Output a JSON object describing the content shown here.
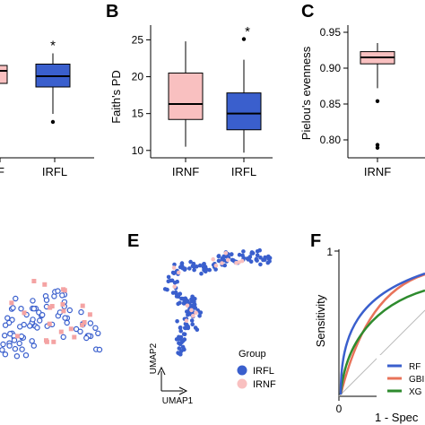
{
  "colors": {
    "irnf": "#f9c0c0",
    "irfl": "#3a5fcd",
    "rf": "#3a5fcd",
    "gbm": "#e8735a",
    "xg": "#2e8b2e"
  },
  "panel_a": {
    "categories": [
      "IRNF",
      "IRFL"
    ],
    "visible_labels": [
      "F",
      "IRFL"
    ],
    "significance": "*",
    "boxes": [
      {
        "name": "IRNF",
        "q3": 0.9,
        "median": 0.7
      },
      {
        "name": "IRFL",
        "min": -0.9,
        "q1": 0.1,
        "median": 0.5,
        "q3": 0.95,
        "max": 1.35,
        "outliers": [
          -1.2
        ],
        "sig": "*"
      }
    ]
  },
  "panel_b": {
    "letter": "B",
    "ylabel": "Faith's PD",
    "yticks": [
      "25",
      "20",
      "15",
      "10"
    ],
    "ylim": [
      9,
      27
    ],
    "categories": [
      "IRNF",
      "IRFL"
    ],
    "significance": "*",
    "boxes": [
      {
        "name": "IRNF",
        "min": 10.5,
        "q1": 14.2,
        "median": 16.3,
        "q3": 20.5,
        "max": 24.8,
        "outliers": []
      },
      {
        "name": "IRFL",
        "min": 9.7,
        "q1": 12.8,
        "median": 15.0,
        "q3": 17.8,
        "max": 22.3,
        "outliers": [
          25.1
        ]
      }
    ]
  },
  "panel_c": {
    "letter": "C",
    "ylabel": "Pielou's evenness",
    "yticks": [
      "0.95",
      "0.90",
      "0.85",
      "0.80"
    ],
    "ylim": [
      0.775,
      0.96
    ],
    "categories": [
      "IRNF"
    ],
    "boxes": [
      {
        "name": "IRNF",
        "min": 0.872,
        "q1": 0.906,
        "median": 0.915,
        "q3": 0.923,
        "max": 0.935,
        "outliers": [
          0.854,
          0.793,
          0.789
        ]
      }
    ]
  },
  "panel_e": {
    "letter": "E",
    "xlabel": "UMAP1",
    "ylabel": "UMAP2",
    "legend_title": "Group",
    "legend": [
      "IRFL",
      "IRNF"
    ]
  },
  "panel_f": {
    "letter": "F",
    "ylabel": "Sensitivity",
    "xlabel": "1 - Spec",
    "xtick0": "0",
    "ytick_top": "1",
    "legend": [
      "RF",
      "GBI",
      "XG"
    ]
  }
}
